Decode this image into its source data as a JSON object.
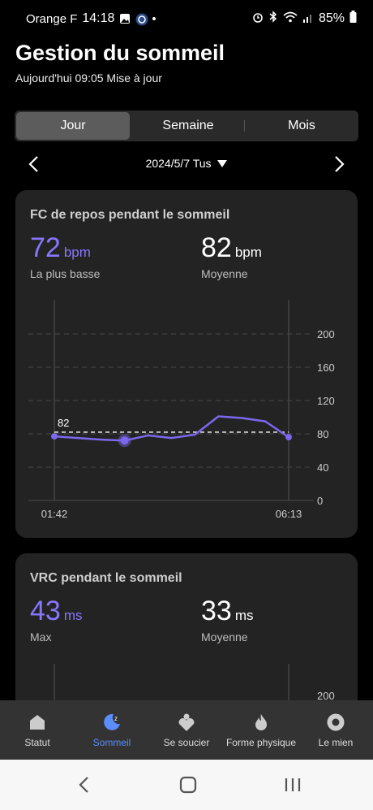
{
  "status": {
    "carrier": "Orange F",
    "time": "14:18",
    "battery": "85%"
  },
  "header": {
    "title": "Gestion du sommeil",
    "subtitle": "Aujourd'hui 09:05 Mise à jour"
  },
  "tabs": [
    {
      "label": "Jour",
      "active": true
    },
    {
      "label": "Semaine",
      "active": false
    },
    {
      "label": "Mois",
      "active": false
    }
  ],
  "date": {
    "label": "2024/5/7 Tus"
  },
  "card1": {
    "title": "FC de repos pendant le sommeil",
    "lowest": {
      "value": "72",
      "unit": "bpm",
      "label": "La plus basse"
    },
    "average": {
      "value": "82",
      "unit": "bpm",
      "label": "Moyenne"
    },
    "chart_data": {
      "type": "line",
      "x_labels": [
        "01:42",
        "06:13"
      ],
      "y_ticks": [
        "0",
        "40",
        "80",
        "120",
        "160",
        "200"
      ],
      "ylim": [
        0,
        200
      ],
      "series": [
        {
          "values": [
            77,
            75,
            73,
            72,
            78,
            75,
            79,
            101,
            99,
            95,
            76
          ]
        }
      ],
      "average_line": {
        "value": 82,
        "label": "82"
      },
      "highlight_index": 3,
      "color": "#7b68ee"
    }
  },
  "card2": {
    "title": "VRC pendant le sommeil",
    "max": {
      "value": "43",
      "unit": "ms",
      "label": "Max"
    },
    "average": {
      "value": "33",
      "unit": "ms",
      "label": "Moyenne"
    },
    "y_tick_top": "200"
  },
  "bottom_nav": [
    {
      "label": "Statut",
      "icon": "home-icon",
      "active": false
    },
    {
      "label": "Sommeil",
      "icon": "sleep-moon-icon",
      "active": true
    },
    {
      "label": "Se soucier",
      "icon": "care-heart-icon",
      "active": false
    },
    {
      "label": "Forme physique",
      "icon": "flame-icon",
      "active": false
    },
    {
      "label": "Le mien",
      "icon": "profile-icon",
      "active": false
    }
  ],
  "colors": {
    "accent": "#8777ff",
    "line": "#7b68ee",
    "nav_active": "#5b8dff"
  }
}
